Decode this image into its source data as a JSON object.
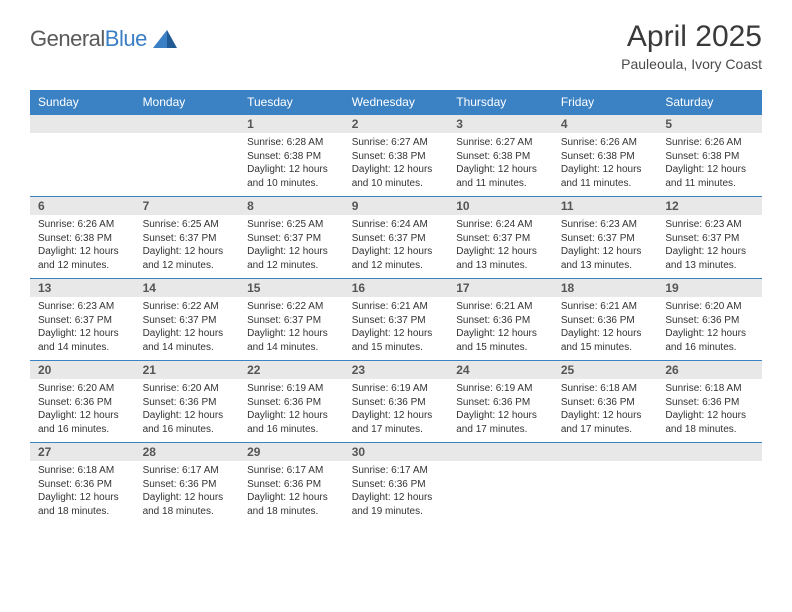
{
  "logo": {
    "text1": "General",
    "text2": "Blue"
  },
  "header": {
    "month": "April 2025",
    "location": "Pauleoula, Ivory Coast"
  },
  "colors": {
    "header_bg": "#3b82c4",
    "header_fg": "#ffffff",
    "daynum_bg": "#e8e8e8",
    "rule": "#3b82c4",
    "logo_gray": "#5a5a5a",
    "logo_blue": "#3b7fc4"
  },
  "dayNames": [
    "Sunday",
    "Monday",
    "Tuesday",
    "Wednesday",
    "Thursday",
    "Friday",
    "Saturday"
  ],
  "weeks": [
    [
      null,
      null,
      {
        "n": 1,
        "sr": "6:28 AM",
        "ss": "6:38 PM",
        "dl": "12 hours and 10 minutes."
      },
      {
        "n": 2,
        "sr": "6:27 AM",
        "ss": "6:38 PM",
        "dl": "12 hours and 10 minutes."
      },
      {
        "n": 3,
        "sr": "6:27 AM",
        "ss": "6:38 PM",
        "dl": "12 hours and 11 minutes."
      },
      {
        "n": 4,
        "sr": "6:26 AM",
        "ss": "6:38 PM",
        "dl": "12 hours and 11 minutes."
      },
      {
        "n": 5,
        "sr": "6:26 AM",
        "ss": "6:38 PM",
        "dl": "12 hours and 11 minutes."
      }
    ],
    [
      {
        "n": 6,
        "sr": "6:26 AM",
        "ss": "6:38 PM",
        "dl": "12 hours and 12 minutes."
      },
      {
        "n": 7,
        "sr": "6:25 AM",
        "ss": "6:37 PM",
        "dl": "12 hours and 12 minutes."
      },
      {
        "n": 8,
        "sr": "6:25 AM",
        "ss": "6:37 PM",
        "dl": "12 hours and 12 minutes."
      },
      {
        "n": 9,
        "sr": "6:24 AM",
        "ss": "6:37 PM",
        "dl": "12 hours and 12 minutes."
      },
      {
        "n": 10,
        "sr": "6:24 AM",
        "ss": "6:37 PM",
        "dl": "12 hours and 13 minutes."
      },
      {
        "n": 11,
        "sr": "6:23 AM",
        "ss": "6:37 PM",
        "dl": "12 hours and 13 minutes."
      },
      {
        "n": 12,
        "sr": "6:23 AM",
        "ss": "6:37 PM",
        "dl": "12 hours and 13 minutes."
      }
    ],
    [
      {
        "n": 13,
        "sr": "6:23 AM",
        "ss": "6:37 PM",
        "dl": "12 hours and 14 minutes."
      },
      {
        "n": 14,
        "sr": "6:22 AM",
        "ss": "6:37 PM",
        "dl": "12 hours and 14 minutes."
      },
      {
        "n": 15,
        "sr": "6:22 AM",
        "ss": "6:37 PM",
        "dl": "12 hours and 14 minutes."
      },
      {
        "n": 16,
        "sr": "6:21 AM",
        "ss": "6:37 PM",
        "dl": "12 hours and 15 minutes."
      },
      {
        "n": 17,
        "sr": "6:21 AM",
        "ss": "6:36 PM",
        "dl": "12 hours and 15 minutes."
      },
      {
        "n": 18,
        "sr": "6:21 AM",
        "ss": "6:36 PM",
        "dl": "12 hours and 15 minutes."
      },
      {
        "n": 19,
        "sr": "6:20 AM",
        "ss": "6:36 PM",
        "dl": "12 hours and 16 minutes."
      }
    ],
    [
      {
        "n": 20,
        "sr": "6:20 AM",
        "ss": "6:36 PM",
        "dl": "12 hours and 16 minutes."
      },
      {
        "n": 21,
        "sr": "6:20 AM",
        "ss": "6:36 PM",
        "dl": "12 hours and 16 minutes."
      },
      {
        "n": 22,
        "sr": "6:19 AM",
        "ss": "6:36 PM",
        "dl": "12 hours and 16 minutes."
      },
      {
        "n": 23,
        "sr": "6:19 AM",
        "ss": "6:36 PM",
        "dl": "12 hours and 17 minutes."
      },
      {
        "n": 24,
        "sr": "6:19 AM",
        "ss": "6:36 PM",
        "dl": "12 hours and 17 minutes."
      },
      {
        "n": 25,
        "sr": "6:18 AM",
        "ss": "6:36 PM",
        "dl": "12 hours and 17 minutes."
      },
      {
        "n": 26,
        "sr": "6:18 AM",
        "ss": "6:36 PM",
        "dl": "12 hours and 18 minutes."
      }
    ],
    [
      {
        "n": 27,
        "sr": "6:18 AM",
        "ss": "6:36 PM",
        "dl": "12 hours and 18 minutes."
      },
      {
        "n": 28,
        "sr": "6:17 AM",
        "ss": "6:36 PM",
        "dl": "12 hours and 18 minutes."
      },
      {
        "n": 29,
        "sr": "6:17 AM",
        "ss": "6:36 PM",
        "dl": "12 hours and 18 minutes."
      },
      {
        "n": 30,
        "sr": "6:17 AM",
        "ss": "6:36 PM",
        "dl": "12 hours and 19 minutes."
      },
      null,
      null,
      null
    ]
  ],
  "labels": {
    "sunrise": "Sunrise:",
    "sunset": "Sunset:",
    "daylight": "Daylight:"
  }
}
